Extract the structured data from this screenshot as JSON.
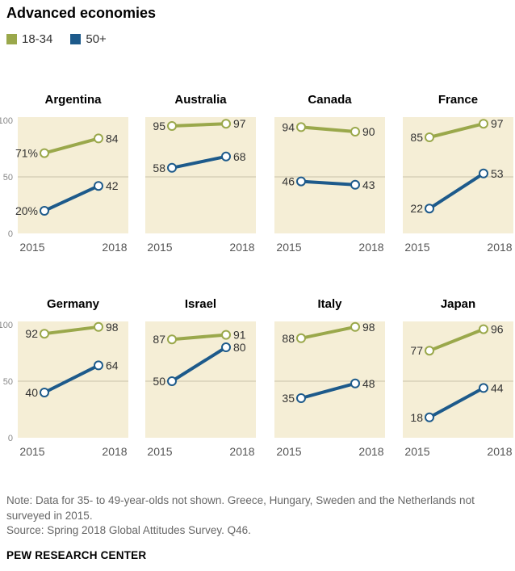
{
  "title": "Advanced economies",
  "legend": [
    {
      "label": "18-34",
      "color": "#9aa84b"
    },
    {
      "label": "50+",
      "color": "#1d5a8b"
    }
  ],
  "y_ticks": [
    "100",
    "50",
    "0"
  ],
  "x_labels": [
    "2015",
    "2018"
  ],
  "note": "Note: Data for 35- to 49-year-olds not shown. Greece, Hungary, Sweden and the Netherlands not surveyed in 2015.",
  "source": "Source: Spring 2018 Global Attitudes Survey. Q46.",
  "credit": "PEW RESEARCH CENTER",
  "colors": {
    "panel_bg": "#f5eed6",
    "young": "#9aa84b",
    "old": "#1d5a8b",
    "gridline": "#c9c2aa"
  },
  "chart_data": {
    "type": "line",
    "ylim": [
      0,
      100
    ],
    "x": [
      "2015",
      "2018"
    ],
    "panels": [
      {
        "name": "Argentina",
        "series": [
          {
            "name": "18-34",
            "values": [
              71,
              84
            ],
            "labels": [
              "71%",
              "84"
            ]
          },
          {
            "name": "50+",
            "values": [
              20,
              42
            ],
            "labels": [
              "20%",
              "42"
            ]
          }
        ]
      },
      {
        "name": "Australia",
        "series": [
          {
            "name": "18-34",
            "values": [
              95,
              97
            ],
            "labels": [
              "95",
              "97"
            ]
          },
          {
            "name": "50+",
            "values": [
              58,
              68
            ],
            "labels": [
              "58",
              "68"
            ]
          }
        ]
      },
      {
        "name": "Canada",
        "series": [
          {
            "name": "18-34",
            "values": [
              94,
              90
            ],
            "labels": [
              "94",
              "90"
            ]
          },
          {
            "name": "50+",
            "values": [
              46,
              43
            ],
            "labels": [
              "46",
              "43"
            ]
          }
        ]
      },
      {
        "name": "France",
        "series": [
          {
            "name": "18-34",
            "values": [
              85,
              97
            ],
            "labels": [
              "85",
              "97"
            ]
          },
          {
            "name": "50+",
            "values": [
              22,
              53
            ],
            "labels": [
              "22",
              "53"
            ]
          }
        ]
      },
      {
        "name": "Germany",
        "series": [
          {
            "name": "18-34",
            "values": [
              92,
              98
            ],
            "labels": [
              "92",
              "98"
            ]
          },
          {
            "name": "50+",
            "values": [
              40,
              64
            ],
            "labels": [
              "40",
              "64"
            ]
          }
        ]
      },
      {
        "name": "Israel",
        "series": [
          {
            "name": "18-34",
            "values": [
              87,
              91
            ],
            "labels": [
              "87",
              "91"
            ]
          },
          {
            "name": "50+",
            "values": [
              50,
              80
            ],
            "labels": [
              "50",
              "80"
            ]
          }
        ]
      },
      {
        "name": "Italy",
        "series": [
          {
            "name": "18-34",
            "values": [
              88,
              98
            ],
            "labels": [
              "88",
              "98"
            ]
          },
          {
            "name": "50+",
            "values": [
              35,
              48
            ],
            "labels": [
              "35",
              "48"
            ]
          }
        ]
      },
      {
        "name": "Japan",
        "series": [
          {
            "name": "18-34",
            "values": [
              77,
              96
            ],
            "labels": [
              "77",
              "96"
            ]
          },
          {
            "name": "50+",
            "values": [
              18,
              44
            ],
            "labels": [
              "18",
              "44"
            ]
          }
        ]
      }
    ]
  }
}
